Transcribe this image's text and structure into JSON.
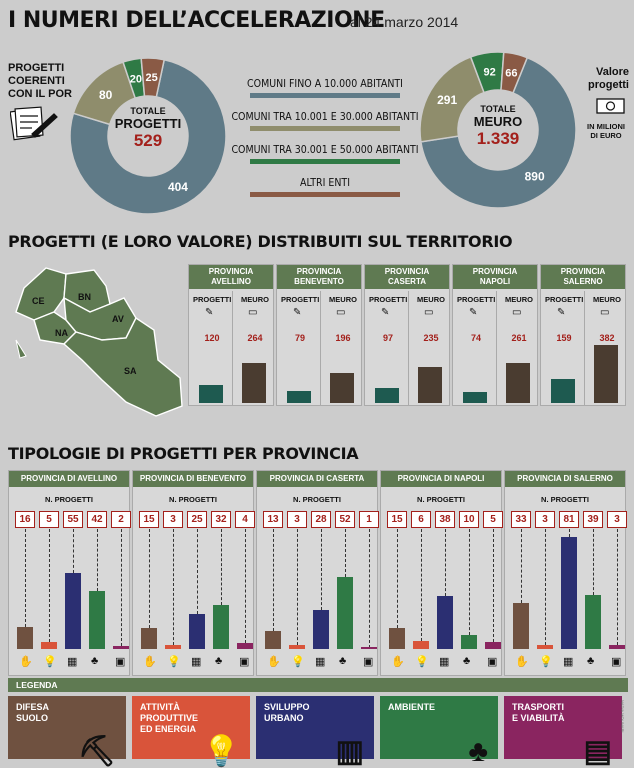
{
  "header": {
    "title": "I NUMERI DELL’ACCELERAZIONE",
    "date": "al 24 marzo 2014"
  },
  "left_side": {
    "label_lines": [
      "PROGETTI",
      "COERENTI",
      "CON IL POR"
    ],
    "icon": "document-pen-icon"
  },
  "right_side": {
    "label_lines": [
      "Valore",
      "progetti"
    ],
    "unit_lines": [
      "IN MILIONI",
      "DI EURO"
    ],
    "icon": "banknote-icon"
  },
  "colors": {
    "comuni_10k": "#5f7a87",
    "comuni_30k": "#8f8d6c",
    "comuni_50k": "#2f7a45",
    "altri": "#8a5a45",
    "dark_teal": "#1e5a50",
    "dark_brown": "#4a3c30",
    "accent_red": "#a3201b"
  },
  "legend_top": [
    {
      "label": "COMUNI FINO A 10.000 ABITANTI",
      "color": "#5f7a87"
    },
    {
      "label": "COMUNI TRA 10.001 E 30.000 ABITANTI",
      "color": "#8f8d6c"
    },
    {
      "label": "COMUNI TRA 30.001 E 50.000 ABITANTI",
      "color": "#2f7a45"
    },
    {
      "label": "ALTRI ENTI",
      "color": "#8a5a45"
    }
  ],
  "donut_left": {
    "center_top": "TOTALE",
    "center_mid": "PROGETTI",
    "center_value": "529",
    "slices": [
      404,
      80,
      20,
      25
    ]
  },
  "donut_right": {
    "center_top": "TOTALE",
    "center_mid": "MEURO",
    "center_value": "1.339",
    "slices": [
      890,
      291,
      92,
      66
    ]
  },
  "section2": {
    "title": "PROGETTI (E LORO VALORE) DISTRIBUITI SUL TERRITORIO",
    "map_labels": [
      "CE",
      "BN",
      "NA",
      "AV",
      "SA"
    ],
    "col_progetti": "PROGETTI",
    "col_meuro": "MEURO",
    "provinces": [
      {
        "name_lines": [
          "PROVINCIA",
          "AVELLINO"
        ],
        "progetti": 120,
        "meuro": 264
      },
      {
        "name_lines": [
          "PROVINCIA",
          "BENEVENTO"
        ],
        "progetti": 79,
        "meuro": 196
      },
      {
        "name_lines": [
          "PROVINCIA",
          "CASERTA"
        ],
        "progetti": 97,
        "meuro": 235
      },
      {
        "name_lines": [
          "PROVINCIA",
          "NAPOLI"
        ],
        "progetti": 74,
        "meuro": 261
      },
      {
        "name_lines": [
          "PROVINCIA",
          "SALERNO"
        ],
        "progetti": 159,
        "meuro": 382
      }
    ]
  },
  "section3": {
    "title": "TIPOLOGIE DI PROGETTI PER PROVINCIA",
    "sub_label": "N. PROGETTI",
    "provinces": [
      {
        "name": "PROVINCIA DI AVELLINO",
        "values": [
          16,
          5,
          55,
          42,
          2
        ]
      },
      {
        "name": "PROVINCIA DI BENEVENTO",
        "values": [
          15,
          3,
          25,
          32,
          4
        ]
      },
      {
        "name": "PROVINCIA DI CASERTA",
        "values": [
          13,
          3,
          28,
          52,
          1
        ]
      },
      {
        "name": "PROVINCIA DI NAPOLI",
        "values": [
          15,
          6,
          38,
          10,
          5
        ]
      },
      {
        "name": "PROVINCIA DI SALERNO",
        "values": [
          33,
          3,
          81,
          39,
          3
        ]
      }
    ]
  },
  "legenda": {
    "title": "LEGENDA",
    "items": [
      {
        "lines": [
          "DIFESA",
          "SUOLO"
        ],
        "color": "#6f5140",
        "icon": "digger-person-icon"
      },
      {
        "lines": [
          "ATTIVITÀ",
          "PRODUTTIVE",
          "ED ENERGIA"
        ],
        "color": "#d9543a",
        "icon": "lightbulb-icon"
      },
      {
        "lines": [
          "SVILUPPO",
          "URBANO"
        ],
        "color": "#2b2f72",
        "icon": "buildings-icon"
      },
      {
        "lines": [
          "AMBIENTE"
        ],
        "color": "#2f7a45",
        "icon": "trees-icon"
      },
      {
        "lines": [
          "TRASPORTI",
          "E VIABILITÀ"
        ],
        "color": "#8a2560",
        "icon": "tram-icon"
      }
    ]
  },
  "credit": "NADIA MOLINARI",
  "chart_data": [
    {
      "type": "pie",
      "title": "",
      "categories": [
        "COMUNI FINO A 10.000 ABITANTI",
        "COMUNI TRA 10.001 E 30.000 ABITANTI",
        "COMUNI TRA 30.001 E 50.000 ABITANTI",
        "ALTRI ENTI"
      ],
      "values": [
        404,
        80,
        20,
        25
      ],
      "total": 529
    },
    {
      "type": "pie",
      "title": "",
      "categories": [
        "COMUNI FINO A 10.000 ABITANTI",
        "COMUNI TRA 10.001 E 30.000 ABITANTI",
        "COMUNI TRA 30.001 E 50.000 ABITANTI",
        "ALTRI ENTI"
      ],
      "values": [
        890,
        291,
        92,
        66
      ],
      "total": 1339
    },
    {
      "type": "bar",
      "title": "PROGETTI (E LORO VALORE) DISTRIBUITI SUL TERRITORIO",
      "categories": [
        "AVELLINO",
        "BENEVENTO",
        "CASERTA",
        "NAPOLI",
        "SALERNO"
      ],
      "series": [
        {
          "name": "PROGETTI",
          "values": [
            120,
            79,
            97,
            74,
            159
          ]
        },
        {
          "name": "MEURO",
          "values": [
            264,
            196,
            235,
            261,
            382
          ]
        }
      ]
    },
    {
      "type": "bar",
      "title": "TIPOLOGIE DI PROGETTI PER PROVINCIA",
      "categories": [
        "PROVINCIA DI AVELLINO",
        "PROVINCIA DI BENEVENTO",
        "PROVINCIA DI CASERTA",
        "PROVINCIA DI NAPOLI",
        "PROVINCIA DI SALERNO"
      ],
      "series": [
        {
          "name": "DIFESA SUOLO",
          "values": [
            16,
            15,
            13,
            15,
            33
          ]
        },
        {
          "name": "ATTIVITÀ PRODUTTIVE ED ENERGIA",
          "values": [
            5,
            3,
            3,
            6,
            3
          ]
        },
        {
          "name": "SVILUPPO URBANO",
          "values": [
            55,
            25,
            28,
            38,
            81
          ]
        },
        {
          "name": "AMBIENTE",
          "values": [
            42,
            32,
            52,
            10,
            39
          ]
        },
        {
          "name": "TRASPORTI E VIABILITÀ",
          "values": [
            2,
            4,
            1,
            5,
            3
          ]
        }
      ]
    }
  ]
}
